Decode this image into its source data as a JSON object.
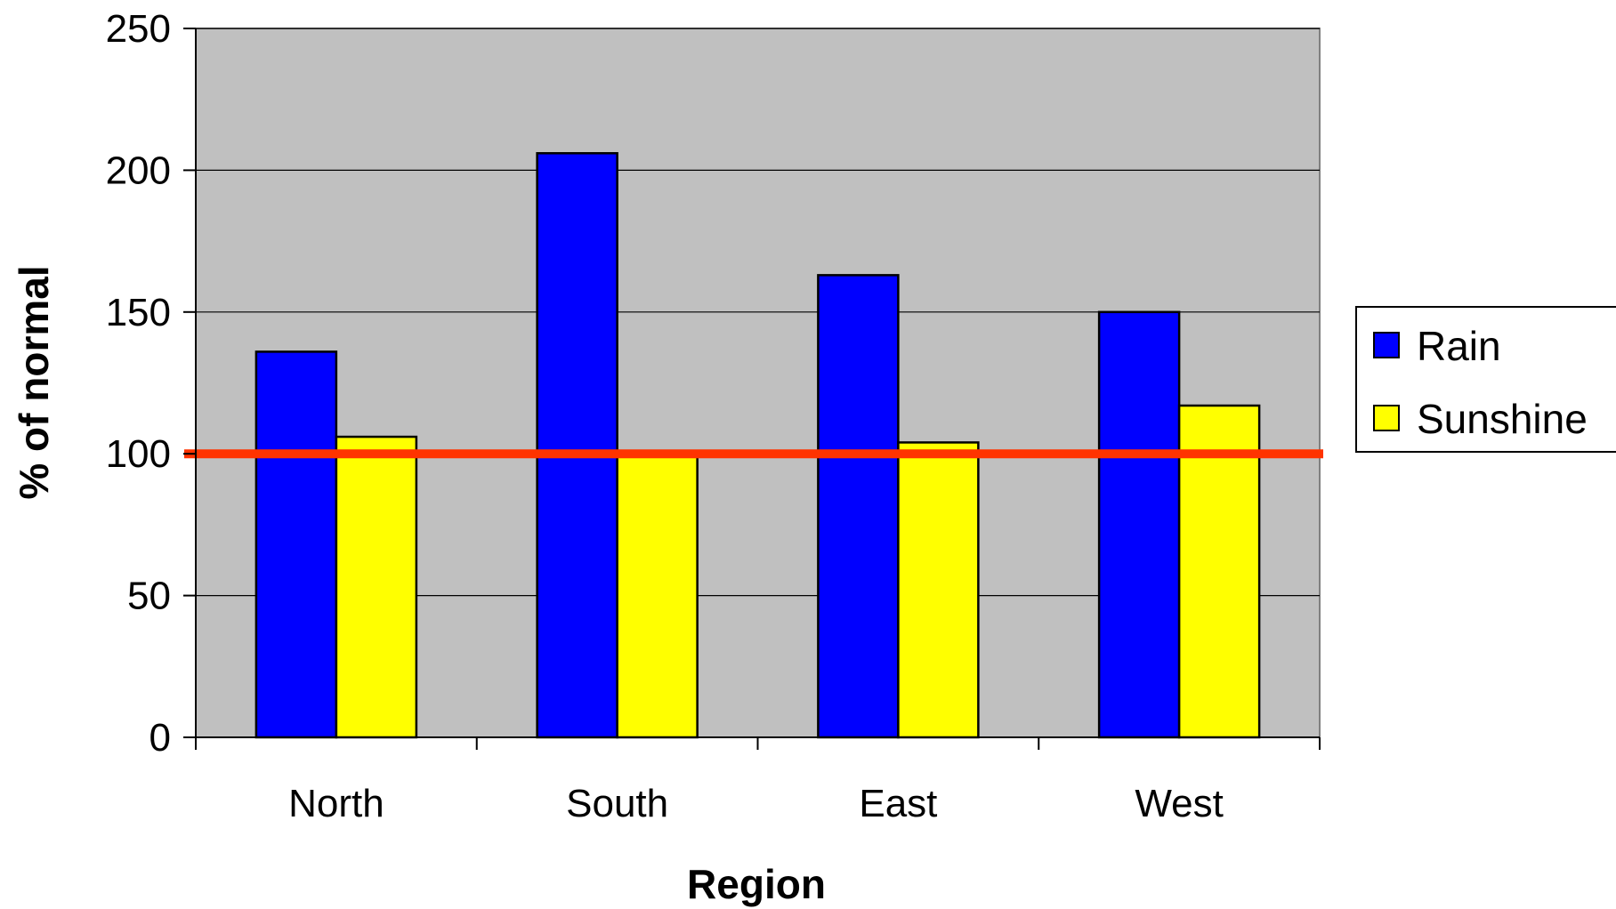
{
  "chart_data": {
    "type": "bar",
    "categories": [
      "North",
      "South",
      "East",
      "West"
    ],
    "series": [
      {
        "name": "Rain",
        "color": "#0000FF",
        "values": [
          136,
          206,
          163,
          150
        ]
      },
      {
        "name": "Sunshine",
        "color": "#FFFF00",
        "values": [
          106,
          100,
          104,
          117
        ]
      }
    ],
    "xlabel": "Region",
    "ylabel": "% of normal",
    "ylim": [
      0,
      250
    ],
    "yticks": [
      "0",
      "50",
      "100",
      "150",
      "200",
      "250"
    ],
    "reference_line": {
      "value": 100,
      "color": "#FF3300"
    },
    "plot_background": "#C0C0C0",
    "grid": true,
    "legend_position": "right"
  }
}
